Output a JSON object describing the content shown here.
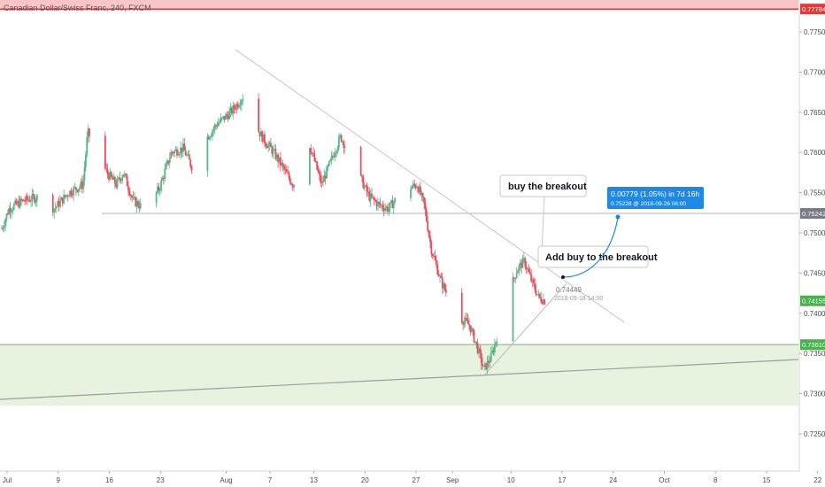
{
  "chart_data": {
    "type": "candlestick",
    "symbol_title": "Canadian Dollar/Swiss Franc, 240, FXCM",
    "ylim": [
      0.72,
      0.78
    ],
    "y_ticks": [
      "0.77500",
      "0.77000",
      "0.76500",
      "0.76000",
      "0.75500",
      "0.75000",
      "0.74500",
      "0.74000",
      "0.73500",
      "0.73000",
      "0.72500"
    ],
    "x_ticks": [
      "Jul",
      "9",
      "16",
      "23",
      "Aug",
      "7",
      "13",
      "20",
      "27",
      "Sep",
      "10",
      "17",
      "24",
      "Oct",
      "8",
      "15",
      "22"
    ],
    "colors": {
      "up": "#53b987",
      "down": "#eb4d5c",
      "axis_text": "#4a4a4a",
      "resistance_line": "#e53935",
      "resistance_zone": "#f8c6c9",
      "support_zone": "#e7f2df",
      "support_line": "#a5c98f",
      "level_label_red": "#e53935",
      "level_label_grey": "#787b86",
      "level_label_green": "#4caf50",
      "measure_box": "#1e88e5"
    },
    "price_labels": [
      {
        "text": "0.77784",
        "value": 0.77784,
        "color": "red"
      },
      {
        "text": "0.75242",
        "value": 0.75242,
        "color": "grey"
      },
      {
        "text": "0.74155",
        "value": 0.74155,
        "color": "green"
      },
      {
        "text": "0.73610",
        "value": 0.7361,
        "color": "green"
      }
    ],
    "horizontal_levels": [
      {
        "value": 0.77784,
        "kind": "resistance"
      },
      {
        "value": 0.75242,
        "kind": "breakout"
      },
      {
        "value": 0.7361,
        "kind": "support"
      }
    ],
    "zones": [
      {
        "from": 0.77784,
        "to": 0.7795,
        "kind": "resistance"
      },
      {
        "from": 0.7285,
        "to": 0.7361,
        "kind": "support"
      }
    ],
    "annotations": [
      {
        "text": "buy the breakout"
      },
      {
        "text": "Add buy to the breakout"
      }
    ],
    "price_note": {
      "value": "0.74449",
      "time": "2018-09-18 14:00"
    },
    "measure": {
      "change": "0.00779 (1.05%) in 7d 16h",
      "target": "0.75228 @ 2018-09-26 06:00"
    },
    "price_path": [
      {
        "t": 0,
        "p": 0.7505
      },
      {
        "t": 3,
        "p": 0.753
      },
      {
        "t": 9,
        "p": 0.754
      },
      {
        "t": 16,
        "p": 0.7545
      },
      {
        "t": 22,
        "p": 0.753
      },
      {
        "t": 28,
        "p": 0.755
      },
      {
        "t": 34,
        "p": 0.756
      },
      {
        "t": 36,
        "p": 0.7625
      },
      {
        "t": 40,
        "p": 0.7605
      },
      {
        "t": 44,
        "p": 0.7575
      },
      {
        "t": 48,
        "p": 0.756
      },
      {
        "t": 51,
        "p": 0.7575
      },
      {
        "t": 55,
        "p": 0.754
      },
      {
        "t": 60,
        "p": 0.753
      },
      {
        "t": 66,
        "p": 0.7555
      },
      {
        "t": 71,
        "p": 0.76
      },
      {
        "t": 76,
        "p": 0.7605
      },
      {
        "t": 80,
        "p": 0.758
      },
      {
        "t": 84,
        "p": 0.761
      },
      {
        "t": 90,
        "p": 0.7635
      },
      {
        "t": 96,
        "p": 0.765
      },
      {
        "t": 100,
        "p": 0.7665
      },
      {
        "t": 103,
        "p": 0.768
      },
      {
        "t": 106,
        "p": 0.7635
      },
      {
        "t": 110,
        "p": 0.7615
      },
      {
        "t": 114,
        "p": 0.76
      },
      {
        "t": 118,
        "p": 0.758
      },
      {
        "t": 122,
        "p": 0.756
      },
      {
        "t": 125,
        "p": 0.7575
      },
      {
        "t": 128,
        "p": 0.762
      },
      {
        "t": 131,
        "p": 0.759
      },
      {
        "t": 134,
        "p": 0.756
      },
      {
        "t": 138,
        "p": 0.759
      },
      {
        "t": 142,
        "p": 0.762
      },
      {
        "t": 146,
        "p": 0.7595
      },
      {
        "t": 150,
        "p": 0.757
      },
      {
        "t": 154,
        "p": 0.7545
      },
      {
        "t": 158,
        "p": 0.7535
      },
      {
        "t": 162,
        "p": 0.753
      },
      {
        "t": 166,
        "p": 0.7545
      },
      {
        "t": 170,
        "p": 0.7555
      },
      {
        "t": 174,
        "p": 0.756
      },
      {
        "t": 177,
        "p": 0.7535
      },
      {
        "t": 180,
        "p": 0.748
      },
      {
        "t": 184,
        "p": 0.744
      },
      {
        "t": 188,
        "p": 0.7415
      },
      {
        "t": 192,
        "p": 0.7395
      },
      {
        "t": 196,
        "p": 0.7385
      },
      {
        "t": 199,
        "p": 0.736
      },
      {
        "t": 202,
        "p": 0.733
      },
      {
        "t": 205,
        "p": 0.7345
      },
      {
        "t": 208,
        "p": 0.7375
      },
      {
        "t": 212,
        "p": 0.742
      },
      {
        "t": 216,
        "p": 0.7455
      },
      {
        "t": 219,
        "p": 0.7465
      },
      {
        "t": 222,
        "p": 0.744
      },
      {
        "t": 225,
        "p": 0.742
      },
      {
        "t": 228,
        "p": 0.7415
      }
    ],
    "candles_per_day": 6
  }
}
